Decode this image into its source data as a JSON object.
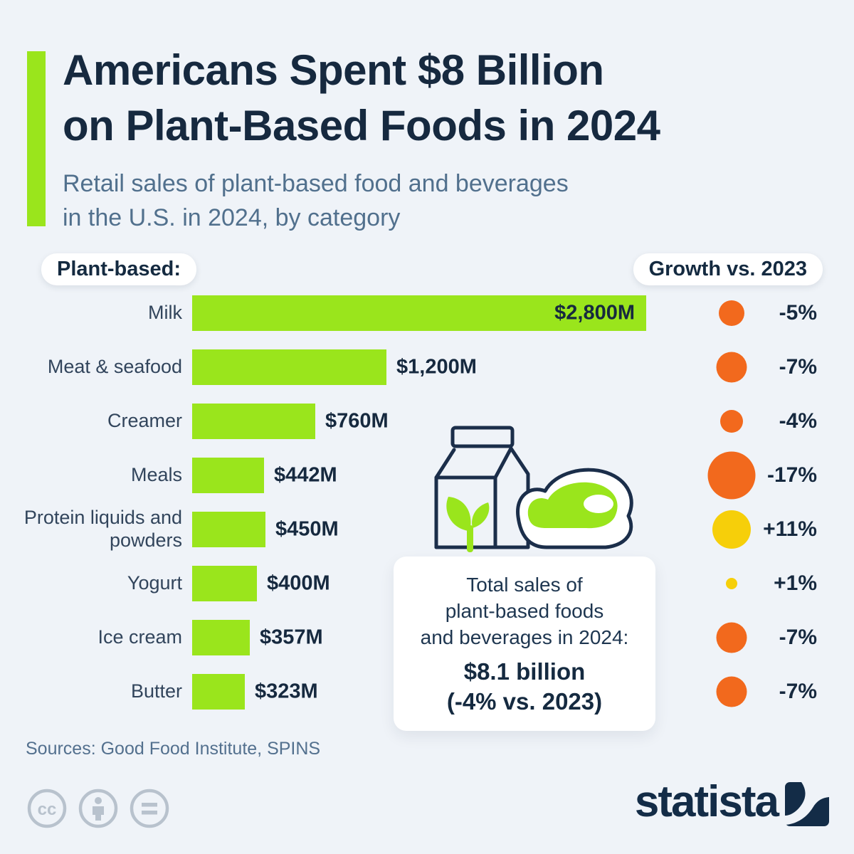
{
  "header": {
    "title1": "Americans Spent $8 Billion",
    "title2": "on Plant-Based Foods in 2024",
    "sub1": "Retail sales of plant-based food and beverages",
    "sub2": "in the U.S. in 2024, by category"
  },
  "chart_data": {
    "type": "bar",
    "orientation": "horizontal",
    "group_label": "Plant-based:",
    "growth_header": "Growth vs. 2023",
    "categories": [
      "Milk",
      "Meat & seafood",
      "Creamer",
      "Meals",
      "Protein liquids and powders",
      "Yogurt",
      "Ice cream",
      "Butter"
    ],
    "values_musd": [
      2800,
      1200,
      760,
      442,
      450,
      400,
      357,
      323
    ],
    "value_labels": [
      "$2,800M",
      "$1,200M",
      "$760M",
      "$442M",
      "$450M",
      "$400M",
      "$357M",
      "$323M"
    ],
    "growth_pct": [
      -5,
      -7,
      -4,
      -17,
      11,
      1,
      -7,
      -7
    ],
    "growth_labels": [
      "-5%",
      "-7%",
      "-4%",
      "-17%",
      "+11%",
      "+1%",
      "-7%",
      "-7%"
    ],
    "xlim": [
      0,
      2800
    ],
    "grid": false,
    "legend": false,
    "bar_color": "#9AE51C",
    "negative_dot_color": "#F2691D",
    "positive_dot_color": "#F6CF0A"
  },
  "callout": {
    "line1": "Total sales of",
    "line2": "plant-based foods",
    "line3": "and beverages in 2024:",
    "bold1": "$8.1 billion",
    "bold2": "(-4% vs. 2023)"
  },
  "footer": {
    "sources": "Sources: Good Food Institute, SPINS",
    "brand": "statista"
  },
  "icons": {
    "center_illustration": "milk-carton-and-steak-icon",
    "license_icons": [
      "cc-icon",
      "attribution-person-icon",
      "equals-icon"
    ],
    "brand_mark": "statista-wave-icon"
  },
  "colors": {
    "background": "#EFF3F8",
    "title_navy": "#16293F",
    "subtitle_slate": "#51708D",
    "accent_green": "#9AE51C",
    "orange": "#F2691D",
    "yellow": "#F6CF0A"
  }
}
